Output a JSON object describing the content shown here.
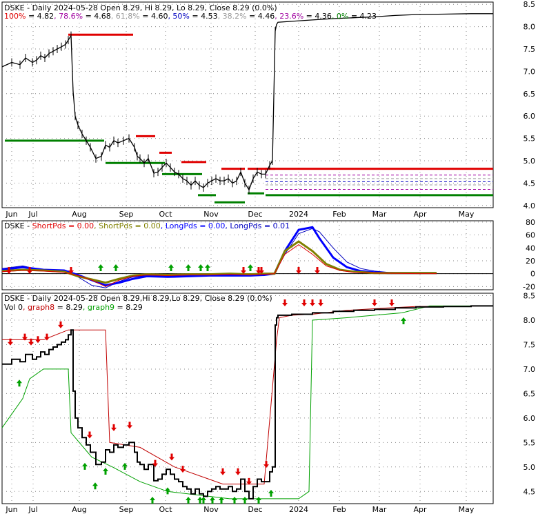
{
  "chart_data": [
    {
      "type": "candlestick",
      "panel": "price",
      "title": "DSKE - Daily 2024-05-28 Open 8.29, Hi 8.29, Lo 8.29, Close 8.29 (0.0%)",
      "fib_levels": [
        {
          "label": "100% = 4.82",
          "pct": "100%",
          "value": 4.82,
          "color": "#e00000"
        },
        {
          "label": "78.6% = 4.68",
          "pct": "78.6%",
          "value": 4.68,
          "color": "#a000a0"
        },
        {
          "label": "61.8% = 4.60",
          "pct": "61.8%",
          "value": 4.6,
          "color": "#9a9a9a"
        },
        {
          "label": "50% = 4.53",
          "pct": "50%",
          "value": 4.53,
          "color": "#0000c0"
        },
        {
          "label": "38.2% = 4.46",
          "pct": "38.2%",
          "value": 4.46,
          "color": "#9a9a9a"
        },
        {
          "label": "23.6% = 4.36",
          "pct": "23.6%",
          "value": 4.36,
          "color": "#a000a0"
        },
        {
          "label": "0% = 4.23",
          "pct": "0%",
          "value": 4.23,
          "color": "#008000"
        }
      ],
      "y_ticks": [
        "8.5",
        "8.0",
        "7.5",
        "7.0",
        "6.5",
        "6.0",
        "5.5",
        "5.0",
        "4.5",
        "4.0"
      ],
      "ylim": [
        3.95,
        8.55
      ],
      "x_ticks": [
        "Jun",
        "Jul",
        "Aug",
        "Sep",
        "Oct",
        "Nov",
        "Dec",
        "2024",
        "Feb",
        "Mar",
        "Apr",
        "May"
      ],
      "close_series": {
        "x": [
          0,
          14,
          26,
          34,
          44,
          50,
          56,
          62,
          68,
          74,
          80,
          86,
          92,
          96,
          100,
          103,
          106,
          110,
          116,
          122,
          128,
          136,
          144,
          150,
          156,
          162,
          168,
          176,
          184,
          192,
          196,
          200,
          206,
          212,
          220,
          226,
          232,
          238,
          244,
          250,
          256,
          262,
          268,
          274,
          280,
          286,
          292,
          298,
          304,
          310,
          316,
          322,
          328,
          334,
          340,
          346,
          352,
          358,
          364,
          370,
          376,
          382,
          388,
          392,
          396,
          398,
          400,
          420,
          450,
          480,
          510,
          540,
          570,
          600,
          640,
          680,
          712
        ],
        "y": [
          7.1,
          7.2,
          7.15,
          7.3,
          7.2,
          7.25,
          7.35,
          7.3,
          7.4,
          7.45,
          7.5,
          7.55,
          7.6,
          7.7,
          7.8,
          6.55,
          6.0,
          5.8,
          5.6,
          5.45,
          5.3,
          5.05,
          5.1,
          5.35,
          5.3,
          5.45,
          5.4,
          5.45,
          5.5,
          5.3,
          5.1,
          5.05,
          4.95,
          5.05,
          4.72,
          4.75,
          4.85,
          4.95,
          4.85,
          4.75,
          4.7,
          4.6,
          4.55,
          4.45,
          4.55,
          4.45,
          4.4,
          4.5,
          4.55,
          4.6,
          4.55,
          4.55,
          4.6,
          4.5,
          4.55,
          4.75,
          4.5,
          4.35,
          4.6,
          4.75,
          4.7,
          4.7,
          4.9,
          5.0,
          7.9,
          8.05,
          8.1,
          8.12,
          8.15,
          8.18,
          8.2,
          8.22,
          8.25,
          8.27,
          8.28,
          8.29,
          8.29
        ]
      }
    },
    {
      "type": "line",
      "panel": "indicator",
      "title": "DSKE - ShortPds = 0.00, ShortPds = 0.00, LongPds = 0.00, LongPds = 0.01",
      "legend": [
        {
          "text": "ShortPds = 0.00",
          "color": "#e00000"
        },
        {
          "text": "ShortPds = 0.00",
          "color": "#808000"
        },
        {
          "text": "LongPds = 0.00",
          "color": "#0000ff"
        },
        {
          "text": "LongPds = 0.01",
          "color": "#0000c0"
        }
      ],
      "y_ticks": [
        "80",
        "60",
        "40",
        "20",
        "0",
        "-20"
      ],
      "ylim": [
        -25,
        82
      ],
      "series": [
        {
          "name": "LongPds = 0.01",
          "x": [
            0,
            30,
            60,
            90,
            110,
            130,
            150,
            170,
            190,
            210,
            240,
            270,
            300,
            330,
            360,
            380,
            395,
            410,
            430,
            450,
            460,
            480,
            500,
            520,
            540,
            560,
            600,
            630
          ],
          "y": [
            8,
            12,
            5,
            4,
            -5,
            -18,
            -22,
            -12,
            -5,
            -3,
            -4,
            -3,
            -3,
            -2,
            -2,
            -1,
            0,
            30,
            62,
            70,
            65,
            40,
            18,
            8,
            4,
            2,
            1,
            1
          ]
        },
        {
          "name": "LongPds = 0.00",
          "x": [
            0,
            30,
            60,
            90,
            110,
            130,
            150,
            170,
            190,
            210,
            240,
            270,
            300,
            330,
            360,
            380,
            395,
            410,
            430,
            450,
            460,
            480,
            500,
            520,
            540,
            560,
            600,
            630
          ],
          "y": [
            6,
            10,
            6,
            5,
            -2,
            -10,
            -18,
            -14,
            -8,
            -4,
            -5,
            -4,
            -3,
            -3,
            -3,
            -2,
            0,
            35,
            68,
            72,
            55,
            25,
            10,
            4,
            2,
            1,
            1,
            1
          ]
        },
        {
          "name": "ShortPds = 0.00",
          "x": [
            0,
            30,
            60,
            90,
            110,
            130,
            150,
            170,
            190,
            210,
            240,
            270,
            300,
            330,
            360,
            380,
            395,
            410,
            430,
            450,
            470,
            490,
            510,
            540,
            600,
            630
          ],
          "y": [
            4,
            6,
            5,
            3,
            -4,
            -9,
            -14,
            -8,
            -3,
            -1,
            -2,
            -1,
            -1,
            0,
            -1,
            0,
            0,
            35,
            50,
            35,
            15,
            6,
            3,
            1,
            1,
            1
          ]
        },
        {
          "name": "ShortPds = 0.00",
          "x": [
            0,
            30,
            60,
            90,
            110,
            130,
            150,
            170,
            190,
            210,
            240,
            270,
            300,
            330,
            360,
            380,
            395,
            410,
            430,
            450,
            470,
            490,
            510,
            540,
            600,
            630
          ],
          "y": [
            3,
            5,
            4,
            2,
            -3,
            -10,
            -20,
            -10,
            -4,
            -2,
            -3,
            -2,
            -2,
            -1,
            -2,
            -1,
            0,
            30,
            45,
            30,
            12,
            5,
            2,
            1,
            0,
            0
          ]
        }
      ],
      "red_arrow_x": [
        10,
        40,
        100,
        350,
        372,
        376,
        430,
        457
      ],
      "green_arrow_x": [
        143,
        165,
        245,
        270,
        288,
        298,
        360
      ]
    },
    {
      "type": "line",
      "panel": "graph",
      "title": "DSKE - Daily 2024-05-28 Open 8.29,Hi 8.29,Lo 8.29, Close 8.29 (0.0%)",
      "legend": [
        {
          "text": "Vol 0",
          "color": "#000000"
        },
        {
          "text": "graph8 = 8.29",
          "color": "#c00000"
        },
        {
          "text": "graph9 = 8.29",
          "color": "#00a000"
        }
      ],
      "y_ticks": [
        "8.5",
        "8.0",
        "7.5",
        "7.0",
        "6.5",
        "6.0",
        "5.5",
        "5.0",
        "4.5"
      ],
      "ylim": [
        4.25,
        8.55
      ],
      "series": [
        {
          "name": "graph8 = 8.29",
          "x": [
            0,
            60,
            96,
            150,
            156,
            200,
            250,
            300,
            320,
            380,
            398,
            402,
            420,
            450,
            500,
            560,
            600,
            712
          ],
          "y": [
            7.6,
            7.6,
            7.8,
            7.8,
            5.5,
            5.4,
            5.0,
            4.75,
            4.65,
            4.65,
            7.6,
            8.05,
            8.1,
            8.12,
            8.2,
            8.25,
            8.28,
            8.29
          ]
        },
        {
          "name": "graph9 = 8.29",
          "x": [
            0,
            30,
            40,
            60,
            96,
            100,
            130,
            160,
            200,
            240,
            300,
            330,
            380,
            430,
            445,
            450,
            500,
            540,
            580,
            620,
            712
          ],
          "y": [
            5.8,
            6.4,
            6.8,
            7.0,
            7.0,
            5.7,
            5.2,
            5.0,
            4.7,
            4.5,
            4.4,
            4.35,
            4.35,
            4.35,
            4.5,
            8.0,
            8.05,
            8.1,
            8.15,
            8.29,
            8.29
          ]
        }
      ],
      "red_arrow_x": [
        12,
        33,
        42,
        52,
        65,
        85,
        127,
        162,
        185,
        222,
        246,
        262,
        320,
        342,
        358,
        383,
        410,
        438,
        450,
        462,
        540,
        565
      ],
      "green_arrow_x": [
        25,
        120,
        135,
        150,
        178,
        218,
        240,
        270,
        287,
        292,
        305,
        318,
        337,
        352,
        372,
        390,
        582
      ]
    }
  ]
}
